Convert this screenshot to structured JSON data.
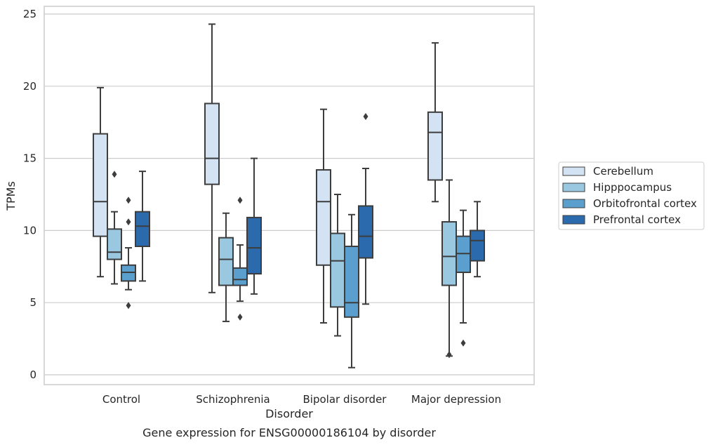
{
  "caption": "Gene expression for ENSG00000186104 by disorder",
  "chart_data": {
    "type": "box",
    "title": "",
    "xlabel": "Disorder",
    "ylabel": "TPMs",
    "ylim": [
      -0.7,
      25.5
    ],
    "yticks": [
      0,
      5,
      10,
      15,
      20,
      25
    ],
    "grid": true,
    "legend_position": "right",
    "categories": [
      "Control",
      "Schizophrenia",
      "Bipolar disorder",
      "Major depression"
    ],
    "series": [
      {
        "name": "Cerebellum",
        "color": "#d3e3f3",
        "boxes": [
          {
            "whisker_low": 6.8,
            "q1": 9.6,
            "median": 12.0,
            "q3": 16.7,
            "whisker_high": 19.9,
            "outliers": []
          },
          {
            "whisker_low": 5.7,
            "q1": 13.2,
            "median": 15.0,
            "q3": 18.8,
            "whisker_high": 24.3,
            "outliers": []
          },
          {
            "whisker_low": 3.6,
            "q1": 7.6,
            "median": 12.0,
            "q3": 14.2,
            "whisker_high": 18.4,
            "outliers": []
          },
          {
            "whisker_low": 12.0,
            "q1": 13.5,
            "median": 16.8,
            "q3": 18.2,
            "whisker_high": 23.0,
            "outliers": []
          }
        ]
      },
      {
        "name": "Hipppocampus",
        "color": "#9ac8e0",
        "boxes": [
          {
            "whisker_low": 6.3,
            "q1": 8.0,
            "median": 8.5,
            "q3": 10.1,
            "whisker_high": 11.3,
            "outliers": [
              13.9
            ]
          },
          {
            "whisker_low": 3.7,
            "q1": 6.2,
            "median": 8.0,
            "q3": 9.5,
            "whisker_high": 11.2,
            "outliers": []
          },
          {
            "whisker_low": 2.7,
            "q1": 4.7,
            "median": 7.9,
            "q3": 9.8,
            "whisker_high": 12.5,
            "outliers": []
          },
          {
            "whisker_low": 1.3,
            "q1": 6.2,
            "median": 8.2,
            "q3": 10.6,
            "whisker_high": 13.5,
            "outliers": [
              1.4
            ]
          }
        ]
      },
      {
        "name": "Orbitofrontal cortex",
        "color": "#5a9fcd",
        "boxes": [
          {
            "whisker_low": 5.9,
            "q1": 6.5,
            "median": 7.1,
            "q3": 7.6,
            "whisker_high": 8.8,
            "outliers": [
              12.1,
              10.6,
              4.8
            ]
          },
          {
            "whisker_low": 5.1,
            "q1": 6.2,
            "median": 6.6,
            "q3": 7.4,
            "whisker_high": 9.0,
            "outliers": [
              12.1,
              4.0
            ]
          },
          {
            "whisker_low": 0.5,
            "q1": 4.0,
            "median": 5.0,
            "q3": 8.9,
            "whisker_high": 11.1,
            "outliers": []
          },
          {
            "whisker_low": 3.6,
            "q1": 7.1,
            "median": 8.4,
            "q3": 9.6,
            "whisker_high": 11.4,
            "outliers": [
              2.2
            ]
          }
        ]
      },
      {
        "name": "Prefrontal cortex",
        "color": "#2b6aad",
        "boxes": [
          {
            "whisker_low": 6.5,
            "q1": 8.9,
            "median": 10.3,
            "q3": 11.3,
            "whisker_high": 14.1,
            "outliers": []
          },
          {
            "whisker_low": 5.6,
            "q1": 7.0,
            "median": 8.8,
            "q3": 10.9,
            "whisker_high": 15.0,
            "outliers": []
          },
          {
            "whisker_low": 4.9,
            "q1": 8.1,
            "median": 9.6,
            "q3": 11.7,
            "whisker_high": 14.3,
            "outliers": [
              17.9
            ]
          },
          {
            "whisker_low": 6.8,
            "q1": 7.9,
            "median": 9.3,
            "q3": 10.0,
            "whisker_high": 12.0,
            "outliers": []
          }
        ]
      }
    ]
  }
}
